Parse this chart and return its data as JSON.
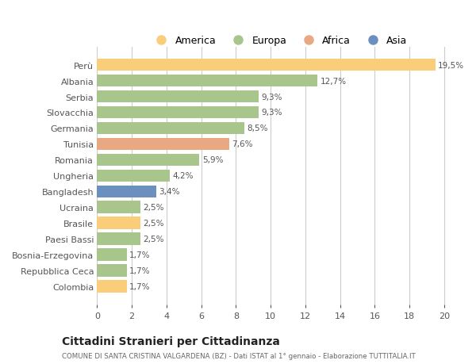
{
  "categories": [
    "Perù",
    "Albania",
    "Serbia",
    "Slovacchia",
    "Germania",
    "Tunisia",
    "Romania",
    "Ungheria",
    "Bangladesh",
    "Ucraina",
    "Brasile",
    "Paesi Bassi",
    "Bosnia-Erzegovina",
    "Repubblica Ceca",
    "Colombia"
  ],
  "values": [
    19.5,
    12.7,
    9.3,
    9.3,
    8.5,
    7.6,
    5.9,
    4.2,
    3.4,
    2.5,
    2.5,
    2.5,
    1.7,
    1.7,
    1.7
  ],
  "labels": [
    "19,5%",
    "12,7%",
    "9,3%",
    "9,3%",
    "8,5%",
    "7,6%",
    "5,9%",
    "4,2%",
    "3,4%",
    "2,5%",
    "2,5%",
    "2,5%",
    "1,7%",
    "1,7%",
    "1,7%"
  ],
  "colors": [
    "#FACD7A",
    "#A8C58C",
    "#A8C58C",
    "#A8C58C",
    "#A8C58C",
    "#E8A882",
    "#A8C58C",
    "#A8C58C",
    "#6B8FBF",
    "#A8C58C",
    "#FACD7A",
    "#A8C58C",
    "#A8C58C",
    "#A8C58C",
    "#FACD7A"
  ],
  "legend": [
    {
      "label": "America",
      "color": "#FACD7A"
    },
    {
      "label": "Europa",
      "color": "#A8C58C"
    },
    {
      "label": "Africa",
      "color": "#E8A882"
    },
    {
      "label": "Asia",
      "color": "#6B8FBF"
    }
  ],
  "xlim": [
    0,
    21
  ],
  "xticks": [
    0,
    2,
    4,
    6,
    8,
    10,
    12,
    14,
    16,
    18,
    20
  ],
  "title": "Cittadini Stranieri per Cittadinanza",
  "subtitle": "COMUNE DI SANTA CRISTINA VALGARDENA (BZ) - Dati ISTAT al 1° gennaio - Elaborazione TUTTITALIA.IT",
  "bg_color": "#FFFFFF",
  "grid_color": "#CCCCCC"
}
